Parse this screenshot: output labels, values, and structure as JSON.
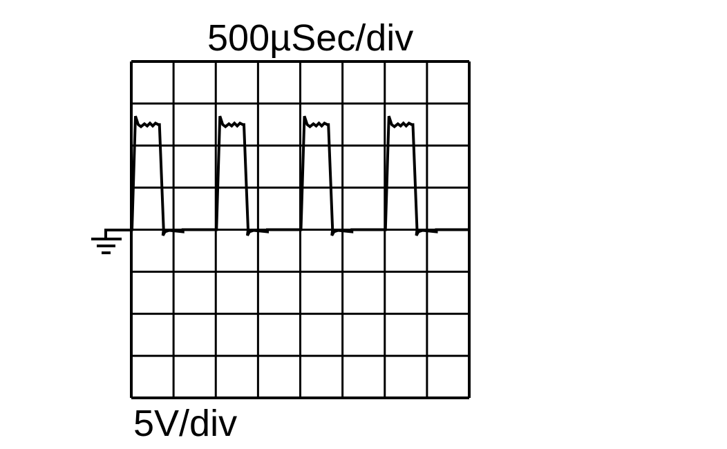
{
  "time_base": "500µSec/div",
  "volt_scale": "5V/div",
  "colors": {
    "trace": "#000000",
    "grid": "#000000",
    "background": "#ffffff"
  },
  "grid": {
    "columns": 8,
    "rows": 8,
    "ground_row_from_top": 4
  },
  "ground_icon": "ground-symbol-icon",
  "waveform": {
    "type": "square-pulse-train",
    "pulse_count": 4,
    "period_div": 2,
    "pulse_width_div": 0.65,
    "high_level_div": 2.5,
    "overshoot_div": 0.2,
    "undershoot_div": 0.25
  }
}
